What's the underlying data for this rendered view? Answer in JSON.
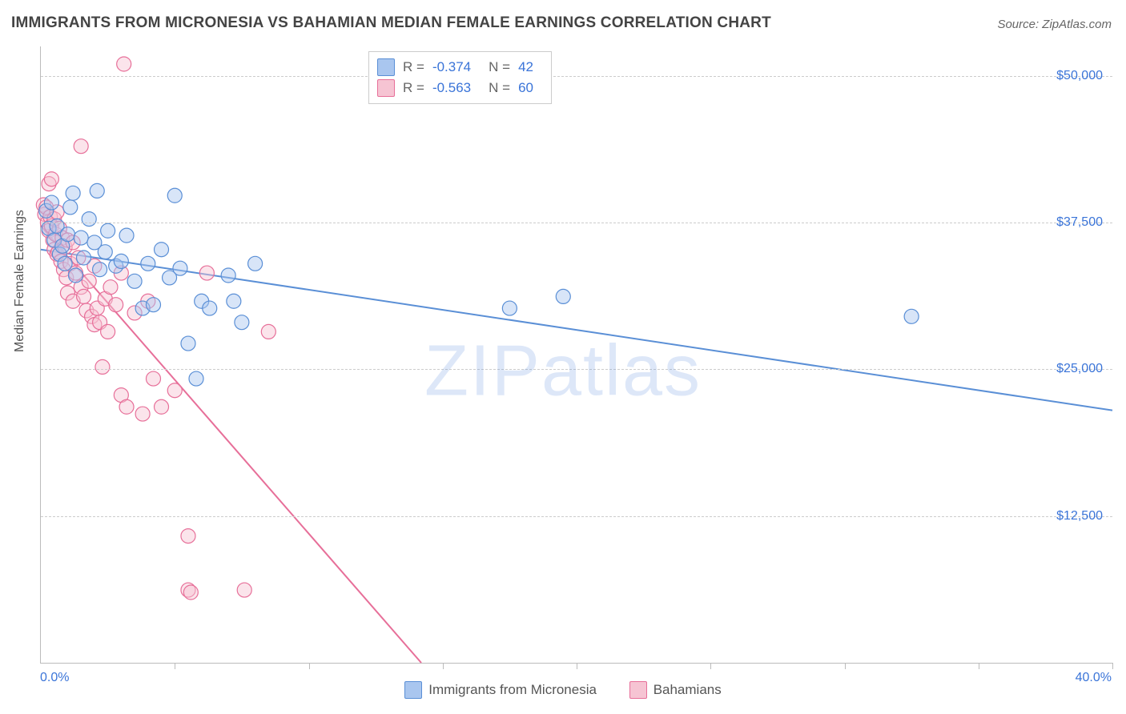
{
  "title": "IMMIGRANTS FROM MICRONESIA VS BAHAMIAN MEDIAN FEMALE EARNINGS CORRELATION CHART",
  "source": "Source: ZipAtlas.com",
  "watermark": "ZIPatlas",
  "yaxis_label": "Median Female Earnings",
  "chart": {
    "type": "scatter",
    "xlim": [
      0,
      40
    ],
    "ylim": [
      0,
      52500
    ],
    "x_min_label": "0.0%",
    "x_max_label": "40.0%",
    "ytick_values": [
      12500,
      25000,
      37500,
      50000
    ],
    "ytick_labels": [
      "$12,500",
      "$25,000",
      "$37,500",
      "$50,000"
    ],
    "xtick_positions": [
      0,
      5,
      10,
      15,
      20,
      25,
      30,
      35,
      40
    ],
    "grid_color": "#cccccc",
    "background": "#ffffff",
    "axis_color": "#bbbbbb",
    "tick_label_color": "#3a74d8",
    "marker_radius": 9,
    "marker_opacity": 0.45,
    "line_width": 2,
    "series": [
      {
        "name": "Immigrants from Micronesia",
        "color_fill": "#a9c6ef",
        "color_stroke": "#5a8fd6",
        "R": "-0.374",
        "N": "42",
        "trend": {
          "x1": 0,
          "y1": 35200,
          "x2": 40,
          "y2": 21500
        },
        "points": [
          [
            0.2,
            38500
          ],
          [
            0.3,
            37000
          ],
          [
            0.4,
            39200
          ],
          [
            0.5,
            36000
          ],
          [
            0.6,
            37200
          ],
          [
            0.7,
            34800
          ],
          [
            0.8,
            35500
          ],
          [
            0.9,
            34000
          ],
          [
            1.0,
            36500
          ],
          [
            1.1,
            38800
          ],
          [
            1.2,
            40000
          ],
          [
            1.3,
            33000
          ],
          [
            1.5,
            36200
          ],
          [
            1.6,
            34500
          ],
          [
            1.8,
            37800
          ],
          [
            2.0,
            35800
          ],
          [
            2.1,
            40200
          ],
          [
            2.2,
            33500
          ],
          [
            2.4,
            35000
          ],
          [
            2.5,
            36800
          ],
          [
            2.8,
            33800
          ],
          [
            3.0,
            34200
          ],
          [
            3.2,
            36400
          ],
          [
            3.5,
            32500
          ],
          [
            3.8,
            30200
          ],
          [
            4.0,
            34000
          ],
          [
            4.2,
            30500
          ],
          [
            4.5,
            35200
          ],
          [
            4.8,
            32800
          ],
          [
            5.0,
            39800
          ],
          [
            5.2,
            33600
          ],
          [
            5.5,
            27200
          ],
          [
            5.8,
            24200
          ],
          [
            6.0,
            30800
          ],
          [
            6.3,
            30200
          ],
          [
            7.0,
            33000
          ],
          [
            7.2,
            30800
          ],
          [
            7.5,
            29000
          ],
          [
            8.0,
            34000
          ],
          [
            17.5,
            30200
          ],
          [
            19.5,
            31200
          ],
          [
            32.5,
            29500
          ]
        ]
      },
      {
        "name": "Bahamians",
        "color_fill": "#f6c4d3",
        "color_stroke": "#e76f99",
        "R": "-0.563",
        "N": "60",
        "trend": {
          "x1": 0,
          "y1": 37200,
          "x2": 14.2,
          "y2": 0
        },
        "points": [
          [
            0.1,
            39000
          ],
          [
            0.15,
            38200
          ],
          [
            0.2,
            38800
          ],
          [
            0.25,
            37500
          ],
          [
            0.3,
            40800
          ],
          [
            0.3,
            36800
          ],
          [
            0.35,
            38000
          ],
          [
            0.4,
            37200
          ],
          [
            0.4,
            41200
          ],
          [
            0.45,
            36000
          ],
          [
            0.5,
            37800
          ],
          [
            0.5,
            35200
          ],
          [
            0.55,
            36500
          ],
          [
            0.6,
            38400
          ],
          [
            0.6,
            34800
          ],
          [
            0.65,
            35000
          ],
          [
            0.7,
            37000
          ],
          [
            0.75,
            34200
          ],
          [
            0.8,
            36200
          ],
          [
            0.85,
            33500
          ],
          [
            0.9,
            35400
          ],
          [
            0.95,
            32800
          ],
          [
            1.0,
            36000
          ],
          [
            1.0,
            31500
          ],
          [
            1.1,
            34000
          ],
          [
            1.2,
            35800
          ],
          [
            1.2,
            30800
          ],
          [
            1.3,
            33200
          ],
          [
            1.4,
            34500
          ],
          [
            1.5,
            32000
          ],
          [
            1.5,
            44000
          ],
          [
            1.6,
            31200
          ],
          [
            1.7,
            30000
          ],
          [
            1.8,
            32500
          ],
          [
            1.9,
            29500
          ],
          [
            2.0,
            33800
          ],
          [
            2.0,
            28800
          ],
          [
            2.1,
            30200
          ],
          [
            2.2,
            29000
          ],
          [
            2.3,
            25200
          ],
          [
            2.4,
            31000
          ],
          [
            2.5,
            28200
          ],
          [
            2.6,
            32000
          ],
          [
            2.8,
            30500
          ],
          [
            3.0,
            33200
          ],
          [
            3.0,
            22800
          ],
          [
            3.1,
            51000
          ],
          [
            3.2,
            21800
          ],
          [
            3.5,
            29800
          ],
          [
            3.8,
            21200
          ],
          [
            4.0,
            30800
          ],
          [
            4.2,
            24200
          ],
          [
            4.5,
            21800
          ],
          [
            5.0,
            23200
          ],
          [
            5.5,
            10800
          ],
          [
            5.5,
            6200
          ],
          [
            5.6,
            6000
          ],
          [
            6.2,
            33200
          ],
          [
            7.6,
            6200
          ],
          [
            8.5,
            28200
          ]
        ]
      }
    ]
  },
  "legend": {
    "r_label": "R =",
    "n_label": "N ="
  }
}
